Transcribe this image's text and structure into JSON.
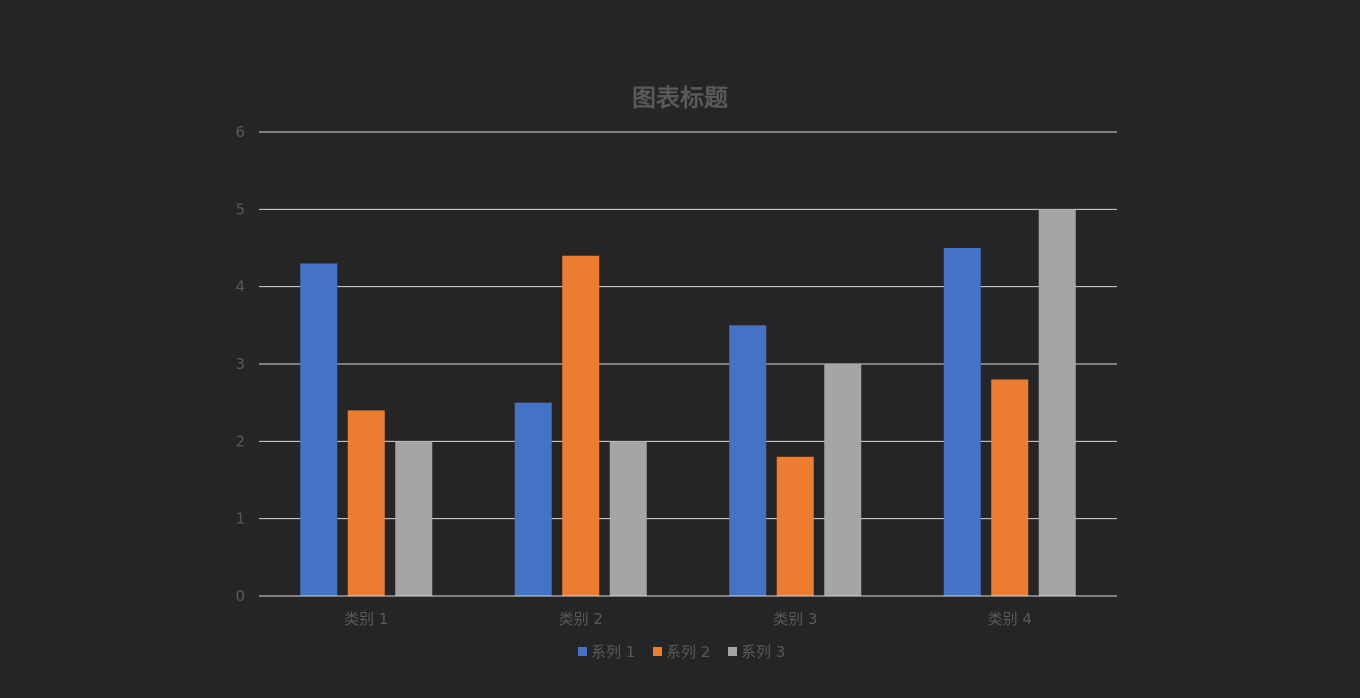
{
  "chart_data": {
    "type": "bar",
    "title": "图表标题",
    "xlabel": "",
    "ylabel": "",
    "ylim": [
      0,
      6
    ],
    "yticks": [
      "0",
      "1",
      "2",
      "3",
      "4",
      "5",
      "6"
    ],
    "categories": [
      "类别 1",
      "类别 2",
      "类别 3",
      "类别 4"
    ],
    "series": [
      {
        "name": "系列 1",
        "values": [
          4.3,
          2.5,
          3.5,
          4.5
        ],
        "color": "#4472C4"
      },
      {
        "name": "系列 2",
        "values": [
          2.4,
          4.4,
          1.8,
          2.8
        ],
        "color": "#ED7D31"
      },
      {
        "name": "系列 3",
        "values": [
          2,
          2,
          3,
          5
        ],
        "color": "#A5A5A5"
      }
    ],
    "grid": true,
    "legend": "bottom",
    "background": "#252525",
    "gridline_color": "#D9D9D9",
    "text_color": "#595959"
  }
}
